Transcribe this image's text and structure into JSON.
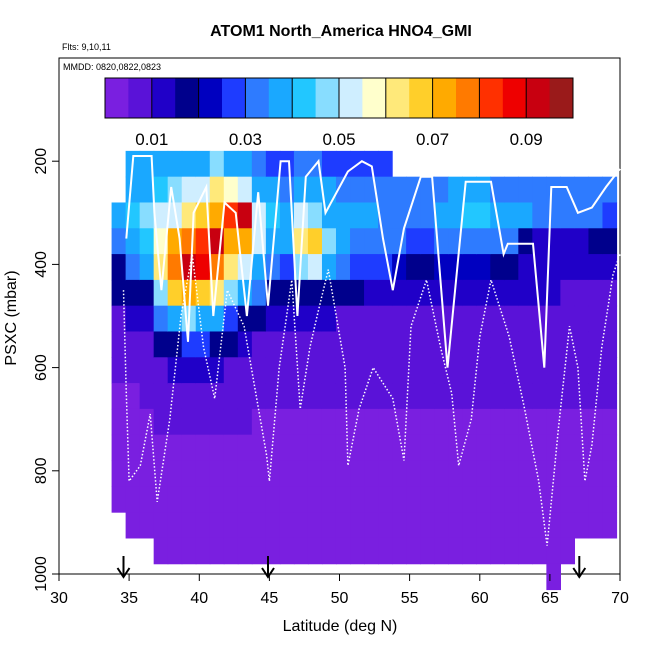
{
  "chart_data": {
    "type": "heatmap",
    "title": "ATOM1 North_America HNO4_GMI",
    "annotations": [
      "Flts: 9,10,11",
      "MMDD: 0820,0822,0823"
    ],
    "xlabel": "Latitude (deg N)",
    "ylabel": "PSXC (mbar)",
    "xlim": [
      30,
      70
    ],
    "ylim": [
      1000,
      0
    ],
    "xticks": [
      "30",
      "35",
      "40",
      "45",
      "50",
      "55",
      "60",
      "65",
      "70"
    ],
    "yticks": [
      "200",
      "400",
      "600",
      "800",
      "1000"
    ],
    "colorbar": {
      "min": 0.0,
      "max": 0.1,
      "tick_values": [
        0.01,
        0.03,
        0.05,
        0.07,
        0.09
      ],
      "tick_labels": [
        "0.01",
        "0.03",
        "0.05",
        "0.07",
        "0.09"
      ],
      "colors": [
        "#7a1fe0",
        "#5a12d8",
        "#2000c8",
        "#00008c",
        "#0000c0",
        "#1e3cff",
        "#2e7bff",
        "#1aa8ff",
        "#22c7ff",
        "#88ddff",
        "#cfeeff",
        "#ffffcc",
        "#ffe97a",
        "#ffcf2a",
        "#ffaa00",
        "#ff7a00",
        "#ff3000",
        "#ee0000",
        "#c80010",
        "#9a1a1a"
      ]
    },
    "flight_arrows_latitude": [
      34.6,
      44.9,
      67.1
    ],
    "columns": [
      {
        "lat": 34.25,
        "values": [
          null,
          null,
          0.04,
          0.03,
          0.02,
          0.015,
          0.01,
          0.008,
          0.008,
          0.005,
          0.004,
          0.004,
          0.003,
          0.003,
          null,
          null,
          null
        ]
      },
      {
        "lat": 35.25,
        "values": [
          0.035,
          0.038,
          0.042,
          0.04,
          0.03,
          0.02,
          0.012,
          0.008,
          0.006,
          0.005,
          0.004,
          0.004,
          0.003,
          0.003,
          0.003,
          null,
          null
        ]
      },
      {
        "lat": 36.25,
        "values": [
          0.036,
          0.04,
          0.045,
          0.044,
          0.035,
          0.02,
          0.012,
          0.008,
          0.007,
          0.006,
          0.005,
          0.004,
          0.004,
          0.003,
          0.003,
          null,
          null
        ]
      },
      {
        "lat": 37.25,
        "values": [
          0.038,
          0.042,
          0.05,
          0.056,
          0.06,
          0.045,
          0.03,
          0.015,
          0.01,
          0.008,
          0.006,
          0.005,
          0.004,
          0.004,
          0.003,
          0.003,
          null
        ]
      },
      {
        "lat": 38.25,
        "values": [
          0.04,
          0.045,
          0.055,
          0.07,
          0.08,
          0.065,
          0.04,
          0.02,
          0.012,
          0.008,
          0.006,
          0.005,
          0.004,
          0.004,
          0.004,
          0.003,
          null
        ]
      },
      {
        "lat": 39.25,
        "values": [
          0.038,
          0.05,
          0.06,
          0.078,
          0.09,
          0.075,
          0.045,
          0.025,
          0.012,
          0.008,
          0.006,
          0.005,
          0.004,
          0.004,
          0.004,
          0.003,
          null
        ]
      },
      {
        "lat": 40.25,
        "values": [
          0.04,
          0.055,
          0.065,
          0.082,
          0.085,
          0.065,
          0.04,
          0.025,
          0.014,
          0.008,
          0.006,
          0.005,
          0.004,
          0.004,
          0.004,
          0.003,
          null
        ]
      },
      {
        "lat": 41.25,
        "values": [
          0.045,
          0.06,
          0.072,
          0.09,
          0.08,
          0.06,
          0.035,
          0.02,
          0.012,
          0.008,
          0.006,
          0.005,
          0.004,
          0.004,
          0.004,
          0.003,
          null
        ]
      },
      {
        "lat": 42.25,
        "values": [
          0.04,
          0.058,
          0.082,
          0.075,
          0.06,
          0.045,
          0.028,
          0.015,
          0.01,
          0.008,
          0.006,
          0.005,
          0.004,
          0.004,
          0.004,
          0.003,
          null
        ]
      },
      {
        "lat": 43.25,
        "values": [
          0.035,
          0.05,
          0.09,
          0.07,
          0.05,
          0.035,
          0.02,
          0.012,
          0.008,
          0.007,
          0.006,
          0.005,
          0.004,
          0.004,
          0.004,
          0.003,
          null
        ]
      },
      {
        "lat": 44.25,
        "values": [
          0.03,
          0.04,
          0.05,
          0.05,
          0.04,
          0.03,
          0.015,
          0.01,
          0.008,
          0.006,
          0.005,
          0.005,
          0.004,
          0.004,
          0.004,
          0.003,
          null
        ]
      },
      {
        "lat": 45.25,
        "values": [
          0.028,
          0.036,
          0.042,
          0.04,
          0.03,
          0.02,
          0.012,
          0.009,
          0.007,
          0.006,
          0.005,
          0.005,
          0.004,
          0.004,
          0.004,
          0.003,
          null
        ]
      },
      {
        "lat": 46.25,
        "values": [
          0.028,
          0.034,
          0.04,
          0.038,
          0.028,
          0.018,
          0.011,
          0.008,
          0.007,
          0.006,
          0.005,
          0.005,
          0.004,
          0.004,
          0.004,
          0.003,
          null
        ]
      },
      {
        "lat": 47.25,
        "values": [
          0.03,
          0.035,
          0.05,
          0.062,
          0.048,
          0.02,
          0.012,
          0.009,
          0.007,
          0.006,
          0.005,
          0.005,
          0.004,
          0.004,
          0.004,
          0.003,
          null
        ]
      },
      {
        "lat": 48.25,
        "values": [
          0.03,
          0.036,
          0.045,
          0.068,
          0.055,
          0.02,
          0.012,
          0.009,
          0.007,
          0.006,
          0.005,
          0.005,
          0.004,
          0.004,
          0.004,
          0.003,
          null
        ]
      },
      {
        "lat": 49.25,
        "values": [
          0.028,
          0.035,
          0.04,
          0.045,
          0.035,
          0.018,
          0.011,
          0.008,
          0.007,
          0.006,
          0.005,
          0.005,
          0.004,
          0.004,
          0.004,
          0.003,
          null
        ]
      },
      {
        "lat": 50.25,
        "values": [
          0.028,
          0.034,
          0.038,
          0.036,
          0.03,
          0.016,
          0.01,
          0.008,
          0.007,
          0.006,
          0.005,
          0.005,
          0.004,
          0.004,
          0.004,
          0.003,
          null
        ]
      },
      {
        "lat": 51.25,
        "values": [
          0.028,
          0.034,
          0.036,
          0.034,
          0.028,
          0.015,
          0.01,
          0.008,
          0.007,
          0.006,
          0.005,
          0.005,
          0.004,
          0.004,
          0.004,
          0.003,
          null
        ]
      },
      {
        "lat": 52.25,
        "values": [
          0.028,
          0.033,
          0.035,
          0.033,
          0.026,
          0.014,
          0.009,
          0.008,
          0.007,
          0.006,
          0.005,
          0.005,
          0.004,
          0.004,
          0.004,
          0.003,
          null
        ]
      },
      {
        "lat": 53.25,
        "values": [
          0.028,
          0.032,
          0.034,
          0.032,
          0.025,
          0.013,
          0.009,
          0.008,
          0.007,
          0.006,
          0.005,
          0.005,
          0.004,
          0.004,
          0.004,
          0.003,
          null
        ]
      },
      {
        "lat": 54.25,
        "values": [
          null,
          0.03,
          0.032,
          0.03,
          0.022,
          0.012,
          0.009,
          0.008,
          0.007,
          0.006,
          0.005,
          0.005,
          0.004,
          0.004,
          0.004,
          0.003,
          null
        ]
      },
      {
        "lat": 55.25,
        "values": [
          null,
          0.03,
          0.032,
          0.028,
          0.02,
          0.012,
          0.009,
          0.008,
          0.007,
          0.006,
          0.005,
          0.005,
          0.004,
          0.004,
          0.004,
          0.003,
          null
        ]
      },
      {
        "lat": 56.25,
        "values": [
          null,
          0.032,
          0.034,
          0.028,
          0.02,
          0.012,
          0.009,
          0.008,
          0.007,
          0.006,
          0.005,
          0.005,
          0.004,
          0.004,
          0.004,
          0.003,
          null
        ]
      },
      {
        "lat": 57.25,
        "values": [
          null,
          0.034,
          0.036,
          0.03,
          0.022,
          0.013,
          0.009,
          0.008,
          0.007,
          0.006,
          0.005,
          0.005,
          0.004,
          0.004,
          0.004,
          0.003,
          null
        ]
      },
      {
        "lat": 58.25,
        "values": [
          null,
          0.036,
          0.04,
          0.032,
          0.024,
          0.014,
          0.01,
          0.008,
          0.007,
          0.006,
          0.005,
          0.005,
          0.004,
          0.004,
          0.004,
          0.003,
          null
        ]
      },
      {
        "lat": 59.25,
        "values": [
          null,
          0.036,
          0.042,
          0.034,
          0.024,
          0.014,
          0.01,
          0.008,
          0.007,
          0.006,
          0.005,
          0.005,
          0.004,
          0.004,
          0.004,
          0.003,
          null
        ]
      },
      {
        "lat": 60.25,
        "values": [
          null,
          0.035,
          0.042,
          0.034,
          0.022,
          0.013,
          0.009,
          0.008,
          0.007,
          0.006,
          0.005,
          0.005,
          0.004,
          0.004,
          0.004,
          0.003,
          null
        ]
      },
      {
        "lat": 61.25,
        "values": [
          null,
          0.034,
          0.04,
          0.032,
          0.02,
          0.012,
          0.009,
          0.008,
          0.007,
          0.006,
          0.005,
          0.005,
          0.004,
          0.004,
          0.004,
          0.003,
          null
        ]
      },
      {
        "lat": 62.25,
        "values": [
          null,
          0.034,
          0.038,
          0.03,
          0.018,
          0.011,
          0.009,
          0.008,
          0.007,
          0.006,
          0.005,
          0.005,
          0.004,
          0.004,
          0.004,
          0.003,
          null
        ]
      },
      {
        "lat": 63.25,
        "values": [
          null,
          0.034,
          0.036,
          0.018,
          0.014,
          0.011,
          0.009,
          0.008,
          0.007,
          0.006,
          0.005,
          0.005,
          0.004,
          0.004,
          0.004,
          0.003,
          null
        ]
      },
      {
        "lat": 64.25,
        "values": [
          null,
          0.034,
          0.034,
          0.012,
          0.012,
          0.011,
          0.009,
          0.008,
          0.007,
          0.006,
          0.005,
          0.005,
          0.004,
          0.004,
          0.004,
          0.003,
          null
        ]
      },
      {
        "lat": 65.25,
        "values": [
          null,
          0.034,
          0.034,
          0.014,
          0.012,
          0.011,
          0.009,
          0.008,
          0.007,
          0.006,
          0.005,
          0.005,
          0.004,
          0.004,
          0.004,
          0.003,
          0.003
        ]
      },
      {
        "lat": 66.25,
        "values": [
          null,
          0.034,
          0.032,
          0.012,
          0.012,
          0.01,
          0.009,
          0.008,
          0.007,
          0.006,
          0.005,
          0.005,
          0.004,
          0.004,
          0.004,
          0.003,
          null
        ]
      },
      {
        "lat": 67.25,
        "values": [
          null,
          0.034,
          0.032,
          0.014,
          0.014,
          0.01,
          0.009,
          0.008,
          0.007,
          0.006,
          0.005,
          0.005,
          0.004,
          0.004,
          0.004,
          null,
          null
        ]
      },
      {
        "lat": 68.25,
        "values": [
          null,
          0.032,
          0.03,
          0.016,
          0.014,
          0.01,
          0.009,
          0.008,
          0.007,
          0.006,
          0.005,
          0.005,
          0.004,
          0.004,
          0.004,
          null,
          null
        ]
      },
      {
        "lat": 69.25,
        "values": [
          null,
          0.03,
          0.028,
          0.018,
          0.014,
          0.01,
          0.009,
          0.008,
          0.007,
          0.006,
          0.005,
          0.005,
          0.004,
          0.004,
          0.004,
          null,
          null
        ]
      }
    ],
    "pressure_bins": [
      200,
      250,
      300,
      350,
      400,
      450,
      500,
      550,
      600,
      650,
      700,
      750,
      800,
      850,
      900,
      950,
      1000
    ],
    "flight_track": {
      "solid": [
        [
          34.8,
          350
        ],
        [
          35.3,
          190
        ],
        [
          36.6,
          190
        ],
        [
          36.8,
          300
        ],
        [
          37.3,
          450
        ],
        [
          38.0,
          250
        ],
        [
          38.6,
          350
        ],
        [
          39.2,
          550
        ],
        [
          39.6,
          300
        ],
        [
          40.5,
          250
        ],
        [
          41.0,
          500
        ],
        [
          41.8,
          280
        ],
        [
          42.6,
          300
        ],
        [
          43.4,
          500
        ],
        [
          44.2,
          260
        ],
        [
          44.9,
          480
        ],
        [
          45.8,
          200
        ],
        [
          46.4,
          200
        ],
        [
          47.0,
          500
        ],
        [
          47.6,
          230
        ],
        [
          48.5,
          200
        ],
        [
          49.0,
          300
        ],
        [
          50.6,
          220
        ],
        [
          51.6,
          200
        ],
        [
          52.3,
          210
        ],
        [
          53.1,
          350
        ],
        [
          53.8,
          450
        ],
        [
          54.6,
          330
        ],
        [
          55.8,
          230
        ],
        [
          56.6,
          230
        ],
        [
          57.7,
          600
        ],
        [
          59.0,
          240
        ],
        [
          60.8,
          240
        ],
        [
          61.7,
          380
        ],
        [
          62.0,
          360
        ],
        [
          63.8,
          360
        ],
        [
          64.6,
          600
        ],
        [
          65.1,
          250
        ],
        [
          66.2,
          250
        ],
        [
          67.0,
          300
        ],
        [
          68.0,
          290
        ],
        [
          69.0,
          250
        ],
        [
          70.0,
          215
        ]
      ],
      "dotted": [
        [
          34.6,
          450
        ],
        [
          34.8,
          650
        ],
        [
          35.0,
          820
        ],
        [
          35.8,
          790
        ],
        [
          36.5,
          690
        ],
        [
          37.0,
          860
        ],
        [
          37.9,
          700
        ],
        [
          38.7,
          500
        ],
        [
          39.5,
          380
        ],
        [
          40.3,
          560
        ],
        [
          41.1,
          660
        ],
        [
          42.0,
          450
        ],
        [
          43.2,
          520
        ],
        [
          44.8,
          770
        ],
        [
          45.0,
          820
        ],
        [
          45.7,
          600
        ],
        [
          46.6,
          430
        ],
        [
          47.2,
          680
        ],
        [
          47.9,
          560
        ],
        [
          48.4,
          500
        ],
        [
          49.2,
          410
        ],
        [
          50.4,
          600
        ],
        [
          50.6,
          790
        ],
        [
          51.4,
          680
        ],
        [
          52.4,
          600
        ],
        [
          53.8,
          660
        ],
        [
          54.6,
          780
        ],
        [
          55.1,
          520
        ],
        [
          56.2,
          430
        ],
        [
          57.2,
          560
        ],
        [
          58.0,
          650
        ],
        [
          58.5,
          790
        ],
        [
          59.4,
          700
        ],
        [
          60.0,
          540
        ],
        [
          60.8,
          430
        ],
        [
          62.1,
          540
        ],
        [
          63.2,
          680
        ],
        [
          64.2,
          820
        ],
        [
          64.8,
          945
        ],
        [
          65.6,
          720
        ],
        [
          66.4,
          520
        ],
        [
          67.0,
          600
        ],
        [
          67.5,
          820
        ],
        [
          68.0,
          750
        ],
        [
          68.7,
          560
        ],
        [
          69.5,
          420
        ],
        [
          70.0,
          380
        ]
      ]
    }
  }
}
